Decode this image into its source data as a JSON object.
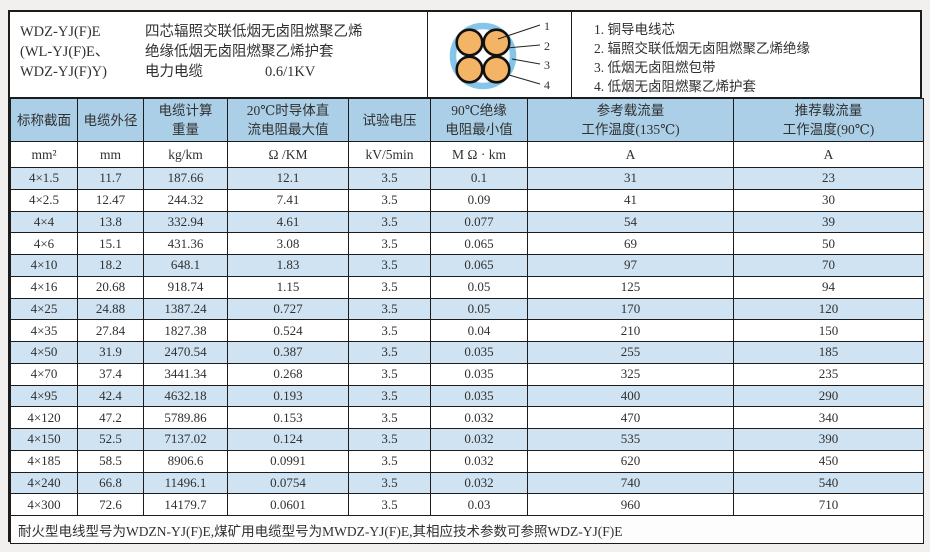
{
  "header": {
    "models": [
      "WDZ-YJ(F)E",
      "(WL-YJ(F)E、",
      "WDZ-YJ(F)Y)"
    ],
    "description_lines": [
      "四芯辐照交联低烟无卤阻燃聚乙烯",
      "绝缘低烟无卤阻燃聚乙烯护套",
      "电力电缆"
    ],
    "voltage": "0.6/1KV",
    "diagram": {
      "callouts": [
        "1",
        "2",
        "3",
        "4"
      ],
      "legend": [
        "1. 铜导电线芯",
        "2. 辐照交联低烟无卤阻燃聚乙烯绝缘",
        "3. 低烟无卤阻燃包带",
        "4. 低烟无卤阻燃聚乙烯护套"
      ],
      "ring_color": "#85c5e8",
      "core_color": "#f3b466"
    }
  },
  "table": {
    "columns": [
      {
        "title_lines": [
          "标称截面"
        ],
        "unit": "mm²"
      },
      {
        "title_lines": [
          "电缆外径"
        ],
        "unit": "mm"
      },
      {
        "title_lines": [
          "电缆计算",
          "重量"
        ],
        "unit": "kg/km"
      },
      {
        "title_lines": [
          "20℃时导体直",
          "流电阻最大值"
        ],
        "unit": "Ω /KM"
      },
      {
        "title_lines": [
          "试验电压"
        ],
        "unit": "kV/5min"
      },
      {
        "title_lines": [
          "90℃绝缘",
          "电阻最小值"
        ],
        "unit": "M Ω · km"
      },
      {
        "title_lines": [
          "参考载流量",
          "工作温度(135℃)"
        ],
        "unit": "A"
      },
      {
        "title_lines": [
          "推荐载流量",
          "工作温度(90℃)"
        ],
        "unit": "A"
      }
    ],
    "rows": [
      [
        "4×1.5",
        "11.7",
        "187.66",
        "12.1",
        "3.5",
        "0.1",
        "31",
        "23"
      ],
      [
        "4×2.5",
        "12.47",
        "244.32",
        "7.41",
        "3.5",
        "0.09",
        "41",
        "30"
      ],
      [
        "4×4",
        "13.8",
        "332.94",
        "4.61",
        "3.5",
        "0.077",
        "54",
        "39"
      ],
      [
        "4×6",
        "15.1",
        "431.36",
        "3.08",
        "3.5",
        "0.065",
        "69",
        "50"
      ],
      [
        "4×10",
        "18.2",
        "648.1",
        "1.83",
        "3.5",
        "0.065",
        "97",
        "70"
      ],
      [
        "4×16",
        "20.68",
        "918.74",
        "1.15",
        "3.5",
        "0.05",
        "125",
        "94"
      ],
      [
        "4×25",
        "24.88",
        "1387.24",
        "0.727",
        "3.5",
        "0.05",
        "170",
        "120"
      ],
      [
        "4×35",
        "27.84",
        "1827.38",
        "0.524",
        "3.5",
        "0.04",
        "210",
        "150"
      ],
      [
        "4×50",
        "31.9",
        "2470.54",
        "0.387",
        "3.5",
        "0.035",
        "255",
        "185"
      ],
      [
        "4×70",
        "37.4",
        "3441.34",
        "0.268",
        "3.5",
        "0.035",
        "325",
        "235"
      ],
      [
        "4×95",
        "42.4",
        "4632.18",
        "0.193",
        "3.5",
        "0.035",
        "400",
        "290"
      ],
      [
        "4×120",
        "47.2",
        "5789.86",
        "0.153",
        "3.5",
        "0.032",
        "470",
        "340"
      ],
      [
        "4×150",
        "52.5",
        "7137.02",
        "0.124",
        "3.5",
        "0.032",
        "535",
        "390"
      ],
      [
        "4×185",
        "58.5",
        "8906.6",
        "0.0991",
        "3.5",
        "0.032",
        "620",
        "450"
      ],
      [
        "4×240",
        "66.8",
        "11496.1",
        "0.0754",
        "3.5",
        "0.032",
        "740",
        "540"
      ],
      [
        "4×300",
        "72.6",
        "14179.7",
        "0.0601",
        "3.5",
        "0.03",
        "960",
        "710"
      ]
    ]
  },
  "note": "耐火型电线型号为WDZN-YJ(F)E,煤矿用电缆型号为MWDZ-YJ(F)E,其相应技术参数可参照WDZ-YJ(F)E",
  "colors": {
    "header_bg": "#abcfe7",
    "alt_row_bg": "#cfe3f2",
    "border": "#1c1c1c",
    "ring_blue": "#85c5e8",
    "core_orange": "#f3b466"
  }
}
